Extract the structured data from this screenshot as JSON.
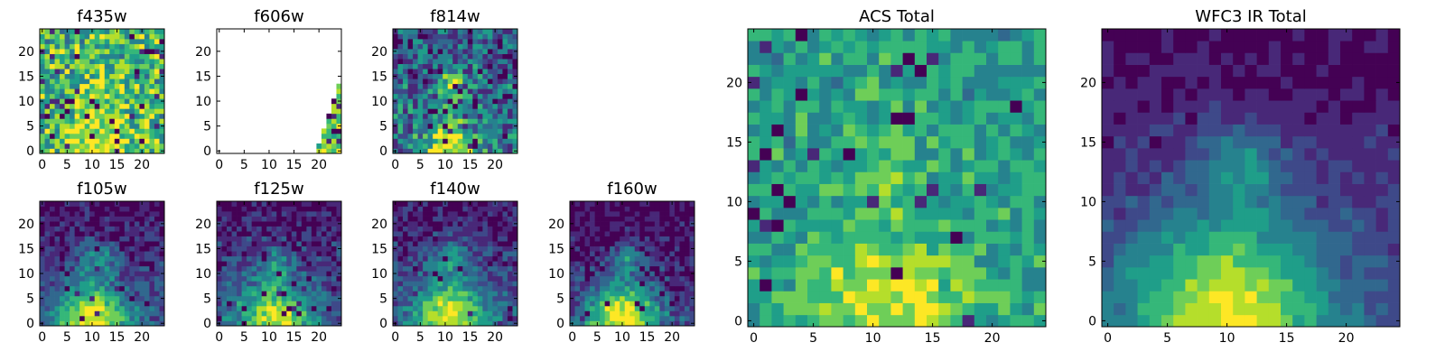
{
  "figure": {
    "background": "#ffffff"
  },
  "colormap": [
    "#440154",
    "#482878",
    "#3e4989",
    "#31688e",
    "#26828e",
    "#1f9e89",
    "#35b779",
    "#6ece58",
    "#b5de2b",
    "#fde725"
  ],
  "chart_data": [
    {
      "id": "f435w",
      "type": "heatmap",
      "title": "f435w",
      "size": 25,
      "xlim": [
        -0.5,
        24.5
      ],
      "ylim": [
        -0.5,
        24.5
      ],
      "xticks": [
        0,
        5,
        10,
        15,
        20
      ],
      "yticks": [
        0,
        5,
        10,
        15,
        20
      ],
      "model": {
        "base": 0.65,
        "noise": 0.28,
        "blobs": [
          [
            11,
            1,
            5,
            0.3
          ],
          [
            13,
            12,
            3,
            0.1
          ]
        ],
        "grad": 0,
        "dark": 0.07,
        "seed": 11
      }
    },
    {
      "id": "f606w",
      "type": "heatmap",
      "title": "f606w",
      "size": 25,
      "xlim": [
        -0.5,
        24.5
      ],
      "ylim": [
        -0.5,
        24.5
      ],
      "xticks": [
        0,
        5,
        10,
        15,
        20
      ],
      "yticks": [
        0,
        5,
        10,
        15,
        20
      ],
      "masked_except": "lower-right corner",
      "model": {
        "base": 0.75,
        "noise": 0.2,
        "blobs": [],
        "grad": 0,
        "dark": 0.15,
        "seed": 23
      }
    },
    {
      "id": "f814w",
      "type": "heatmap",
      "title": "f814w",
      "size": 25,
      "xlim": [
        -0.5,
        24.5
      ],
      "ylim": [
        -0.5,
        24.5
      ],
      "xticks": [
        0,
        5,
        10,
        15,
        20
      ],
      "yticks": [
        0,
        5,
        10,
        15,
        20
      ],
      "model": {
        "base": 0.4,
        "noise": 0.28,
        "blobs": [
          [
            11,
            1,
            3.5,
            0.6
          ],
          [
            11,
            13,
            2,
            0.45
          ]
        ],
        "grad": 0.1,
        "dark": 0.06,
        "seed": 37
      }
    },
    {
      "id": "f105w",
      "type": "heatmap",
      "title": "f105w",
      "size": 25,
      "xlim": [
        -0.5,
        24.5
      ],
      "ylim": [
        -0.5,
        24.5
      ],
      "xticks": [
        0,
        5,
        10,
        15,
        20
      ],
      "yticks": [
        0,
        5,
        10,
        15,
        20
      ],
      "model": {
        "base": 0.28,
        "noise": 0.13,
        "blobs": [
          [
            10,
            1,
            5,
            0.68
          ],
          [
            11,
            13,
            2.5,
            0.32
          ]
        ],
        "grad": 0.2,
        "dark": 0.04,
        "seed": 51
      }
    },
    {
      "id": "f125w",
      "type": "heatmap",
      "title": "f125w",
      "size": 25,
      "xlim": [
        -0.5,
        24.5
      ],
      "ylim": [
        -0.5,
        24.5
      ],
      "xticks": [
        0,
        5,
        10,
        15,
        20
      ],
      "yticks": [
        0,
        5,
        10,
        15,
        20
      ],
      "model": {
        "base": 0.3,
        "noise": 0.15,
        "blobs": [
          [
            11,
            1,
            5,
            0.6
          ],
          [
            11,
            12,
            2.5,
            0.28
          ]
        ],
        "grad": 0.2,
        "dark": 0.05,
        "seed": 63
      }
    },
    {
      "id": "f140w",
      "type": "heatmap",
      "title": "f140w",
      "size": 25,
      "xlim": [
        -0.5,
        24.5
      ],
      "ylim": [
        -0.5,
        24.5
      ],
      "xticks": [
        0,
        5,
        10,
        15,
        20
      ],
      "yticks": [
        0,
        5,
        10,
        15,
        20
      ],
      "model": {
        "base": 0.3,
        "noise": 0.14,
        "blobs": [
          [
            11,
            1,
            5,
            0.65
          ],
          [
            11,
            13,
            2.5,
            0.32
          ]
        ],
        "grad": 0.2,
        "dark": 0.05,
        "seed": 77
      }
    },
    {
      "id": "f160w",
      "type": "heatmap",
      "title": "f160w",
      "size": 25,
      "xlim": [
        -0.5,
        24.5
      ],
      "ylim": [
        -0.5,
        24.5
      ],
      "xticks": [
        0,
        5,
        10,
        15,
        20
      ],
      "yticks": [
        0,
        5,
        10,
        15,
        20
      ],
      "model": {
        "base": 0.25,
        "noise": 0.15,
        "blobs": [
          [
            10,
            1,
            5,
            0.72
          ],
          [
            11,
            13,
            2.2,
            0.38
          ]
        ],
        "grad": 0.22,
        "dark": 0.06,
        "seed": 89
      }
    },
    {
      "id": "acs-total",
      "type": "heatmap",
      "title": "ACS Total",
      "size": 25,
      "xlim": [
        -0.5,
        24.5
      ],
      "ylim": [
        -0.5,
        24.5
      ],
      "xticks": [
        0,
        5,
        10,
        15,
        20
      ],
      "yticks": [
        0,
        5,
        10,
        15,
        20
      ],
      "model": {
        "base": 0.55,
        "noise": 0.16,
        "blobs": [
          [
            11,
            1,
            5,
            0.35
          ],
          [
            11,
            13,
            2.5,
            0.14
          ]
        ],
        "grad": 0,
        "dark": 0.05,
        "seed": 101
      }
    },
    {
      "id": "wfc3-ir-total",
      "type": "heatmap",
      "title": "WFC3 IR Total",
      "size": 25,
      "xlim": [
        -0.5,
        24.5
      ],
      "ylim": [
        -0.5,
        24.5
      ],
      "xticks": [
        0,
        5,
        10,
        15,
        20
      ],
      "yticks": [
        0,
        5,
        10,
        15,
        20
      ],
      "model": {
        "base": 0.28,
        "noise": 0.07,
        "blobs": [
          [
            10,
            1,
            5.5,
            0.66
          ],
          [
            11,
            13,
            2.5,
            0.3
          ]
        ],
        "grad": 0.22,
        "dark": 0.0,
        "seed": 113
      }
    }
  ]
}
